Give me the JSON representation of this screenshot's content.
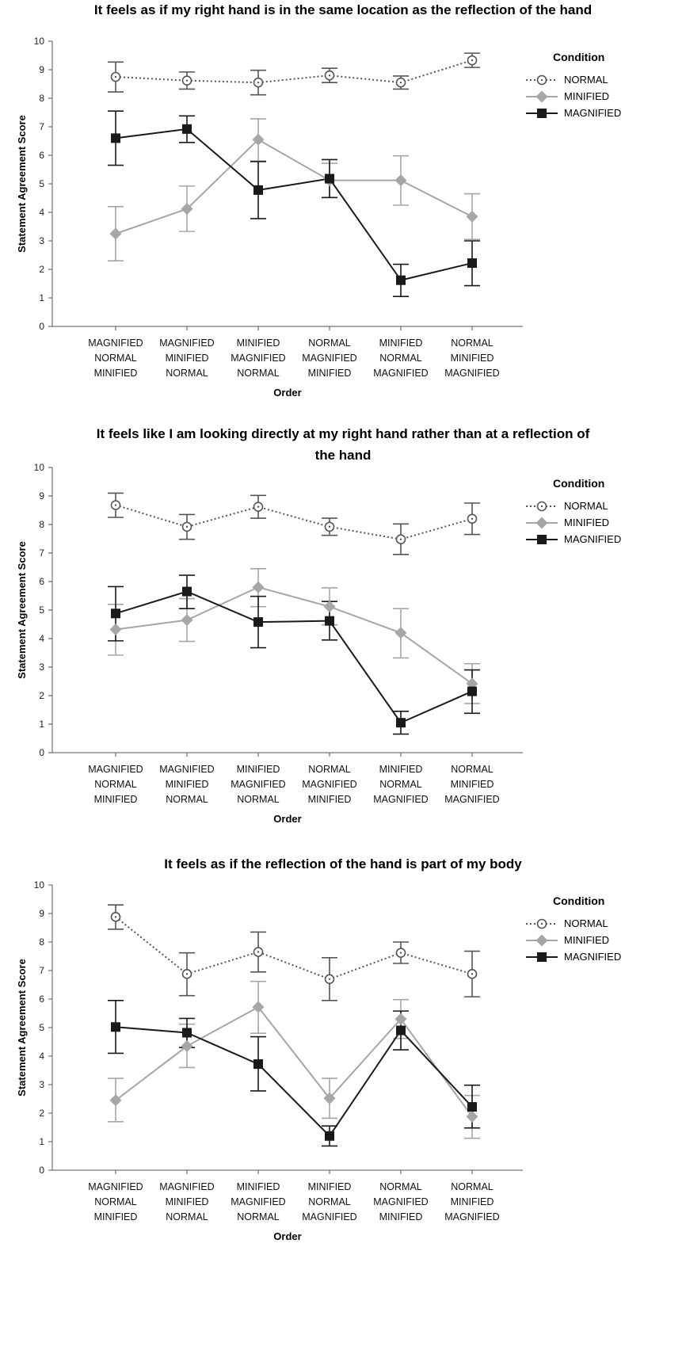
{
  "chart_data": [
    {
      "type": "line",
      "title": "It feels as if my right hand is in the same location as the reflection of the hand",
      "xlabel": "Order",
      "ylabel": "Statement Agreement Score",
      "ylim": [
        0,
        10
      ],
      "yticks": [
        "0",
        "1",
        "2",
        "3",
        "4",
        "5",
        "6",
        "7",
        "8",
        "9",
        "10"
      ],
      "categories": [
        [
          "MAGNIFIED",
          "NORMAL",
          "MINIFIED"
        ],
        [
          "MAGNIFIED",
          "MINIFIED",
          "NORMAL"
        ],
        [
          "MINIFIED",
          "MAGNIFIED",
          "NORMAL"
        ],
        [
          "NORMAL",
          "MAGNIFIED",
          "MINIFIED"
        ],
        [
          "MINIFIED",
          "NORMAL",
          "MAGNIFIED"
        ],
        [
          "NORMAL",
          "MINIFIED",
          "MAGNIFIED"
        ]
      ],
      "legend": {
        "title": "Condition",
        "placement": "right"
      },
      "series": [
        {
          "name": "NORMAL",
          "color": "#555555",
          "marker": "open-circle",
          "line": "dotted",
          "values": [
            8.75,
            8.62,
            8.55,
            8.8,
            8.55,
            9.33
          ],
          "err_low": [
            8.22,
            8.32,
            8.12,
            8.55,
            8.32,
            9.08
          ],
          "err_high": [
            9.27,
            8.92,
            8.98,
            9.05,
            8.78,
            9.58
          ]
        },
        {
          "name": "MINIFIED",
          "color": "#a6a6a6",
          "marker": "diamond",
          "line": "solid",
          "values": [
            3.25,
            4.12,
            6.55,
            5.12,
            5.12,
            3.85
          ],
          "err_low": [
            2.3,
            3.33,
            5.8,
            4.52,
            4.25,
            3.05
          ],
          "err_high": [
            4.2,
            4.92,
            7.28,
            5.72,
            5.98,
            4.65
          ]
        },
        {
          "name": "MAGNIFIED",
          "color": "#1a1a1a",
          "marker": "square",
          "line": "solid",
          "values": [
            6.6,
            6.92,
            4.78,
            5.18,
            1.62,
            2.22
          ],
          "err_low": [
            5.65,
            6.45,
            3.78,
            4.52,
            1.05,
            1.43
          ],
          "err_high": [
            7.55,
            7.38,
            5.78,
            5.85,
            2.18,
            3.0
          ]
        }
      ]
    },
    {
      "type": "line",
      "title": "It feels like I am looking directly at my right hand rather than at a reflection of the hand",
      "xlabel": "Order",
      "ylabel": "Statement Agreement Score",
      "ylim": [
        0,
        10
      ],
      "yticks": [
        "0",
        "1",
        "2",
        "3",
        "4",
        "5",
        "6",
        "7",
        "8",
        "9",
        "10"
      ],
      "categories": [
        [
          "MAGNIFIED",
          "NORMAL",
          "MINIFIED"
        ],
        [
          "MAGNIFIED",
          "MINIFIED",
          "NORMAL"
        ],
        [
          "MINIFIED",
          "MAGNIFIED",
          "NORMAL"
        ],
        [
          "NORMAL",
          "MAGNIFIED",
          "MINIFIED"
        ],
        [
          "MINIFIED",
          "NORMAL",
          "MAGNIFIED"
        ],
        [
          "NORMAL",
          "MINIFIED",
          "MAGNIFIED"
        ]
      ],
      "legend": {
        "title": "Condition",
        "placement": "right"
      },
      "series": [
        {
          "name": "NORMAL",
          "color": "#555555",
          "marker": "open-circle",
          "line": "dotted",
          "values": [
            8.68,
            7.92,
            8.62,
            7.92,
            7.48,
            8.2
          ],
          "err_low": [
            8.25,
            7.48,
            8.22,
            7.62,
            6.95,
            7.65
          ],
          "err_high": [
            9.1,
            8.35,
            9.02,
            8.22,
            8.02,
            8.75
          ]
        },
        {
          "name": "MINIFIED",
          "color": "#a6a6a6",
          "marker": "diamond",
          "line": "solid",
          "values": [
            4.32,
            4.65,
            5.8,
            5.12,
            4.2,
            2.42
          ],
          "err_low": [
            3.42,
            3.9,
            5.12,
            4.48,
            3.32,
            1.72
          ],
          "err_high": [
            5.2,
            5.4,
            6.45,
            5.78,
            5.05,
            3.12
          ]
        },
        {
          "name": "MAGNIFIED",
          "color": "#1a1a1a",
          "marker": "square",
          "line": "solid",
          "values": [
            4.88,
            5.65,
            4.58,
            4.62,
            1.05,
            2.15
          ],
          "err_low": [
            3.92,
            5.05,
            3.68,
            3.95,
            0.65,
            1.38
          ],
          "err_high": [
            5.82,
            6.22,
            5.48,
            5.3,
            1.45,
            2.9
          ]
        }
      ]
    },
    {
      "type": "line",
      "title": "It feels as if the reflection of the hand is part of my body",
      "xlabel": "Order",
      "ylabel": "Statement Agreement Score",
      "ylim": [
        0,
        10
      ],
      "yticks": [
        "0",
        "1",
        "2",
        "3",
        "4",
        "5",
        "6",
        "7",
        "8",
        "9",
        "10"
      ],
      "categories": [
        [
          "MAGNIFIED",
          "NORMAL",
          "MINIFIED"
        ],
        [
          "MAGNIFIED",
          "MINIFIED",
          "NORMAL"
        ],
        [
          "MINIFIED",
          "MAGNIFIED",
          "NORMAL"
        ],
        [
          "MINIFIED",
          "NORMAL",
          "MAGNIFIED"
        ],
        [
          "NORMAL",
          "MAGNIFIED",
          "MINIFIED"
        ],
        [
          "NORMAL",
          "MINIFIED",
          "MAGNIFIED"
        ]
      ],
      "legend": {
        "title": "Condition",
        "placement": "right"
      },
      "series": [
        {
          "name": "NORMAL",
          "color": "#555555",
          "marker": "open-circle",
          "line": "dotted",
          "values": [
            8.88,
            6.88,
            7.65,
            6.7,
            7.62,
            6.88
          ],
          "err_low": [
            8.45,
            6.12,
            6.95,
            5.95,
            7.25,
            6.08
          ],
          "err_high": [
            9.3,
            7.62,
            8.35,
            7.45,
            8.0,
            7.68
          ]
        },
        {
          "name": "MINIFIED",
          "color": "#a6a6a6",
          "marker": "diamond",
          "line": "solid",
          "values": [
            2.45,
            4.35,
            5.72,
            2.52,
            5.3,
            1.88
          ],
          "err_low": [
            1.7,
            3.6,
            4.8,
            1.82,
            4.62,
            1.12
          ],
          "err_high": [
            3.22,
            5.12,
            6.62,
            3.22,
            5.98,
            2.62
          ]
        },
        {
          "name": "MAGNIFIED",
          "color": "#1a1a1a",
          "marker": "square",
          "line": "solid",
          "values": [
            5.02,
            4.82,
            3.72,
            1.2,
            4.9,
            2.22
          ],
          "err_low": [
            4.1,
            4.3,
            2.78,
            0.85,
            4.22,
            1.48
          ],
          "err_high": [
            5.95,
            5.32,
            4.68,
            1.55,
            5.58,
            2.98
          ]
        }
      ]
    }
  ]
}
